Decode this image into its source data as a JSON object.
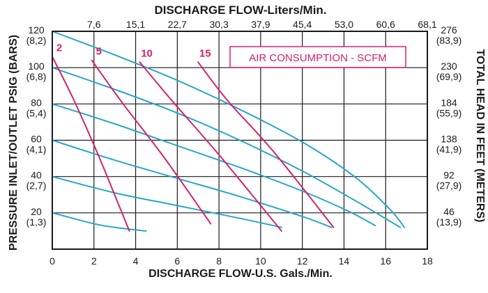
{
  "chart_data": {
    "type": "line",
    "title_top": "DISCHARGE FLOW-Liters/Min.",
    "xlabel": "DISCHARGE FLOW-U.S. Gals./Min.",
    "ylabel": "PRESSURE INLET/OUTLET PSIG (BARS)",
    "y2label": "TOTAL HEAD IN FEET (METERS)",
    "legend": "AIR CONSUMPTION - SCFM",
    "xlim": [
      0,
      18
    ],
    "ylim": [
      0,
      120
    ],
    "grid": true,
    "colors": {
      "pressure": "#29a6c9",
      "air": "#d6216e",
      "text": "#1a1a1a",
      "grid": "#1a1a1a"
    },
    "x_ticks": [
      {
        "value": 0,
        "label": "0"
      },
      {
        "value": 2,
        "label": "2"
      },
      {
        "value": 4,
        "label": "4"
      },
      {
        "value": 6,
        "label": "6"
      },
      {
        "value": 8,
        "label": "8"
      },
      {
        "value": 10,
        "label": "10"
      },
      {
        "value": 12,
        "label": "12"
      },
      {
        "value": 14,
        "label": "14"
      },
      {
        "value": 16,
        "label": "16"
      },
      {
        "value": 18,
        "label": "18"
      }
    ],
    "x_top_ticks": [
      {
        "value": 2,
        "label": "7,6"
      },
      {
        "value": 4,
        "label": "15,1"
      },
      {
        "value": 6,
        "label": "22,7"
      },
      {
        "value": 8,
        "label": "30,3"
      },
      {
        "value": 10,
        "label": "37,9"
      },
      {
        "value": 12,
        "label": "45,4"
      },
      {
        "value": 14,
        "label": "53,0"
      },
      {
        "value": 16,
        "label": "60,6"
      },
      {
        "value": 18,
        "label": "68,1"
      }
    ],
    "y_left_ticks": [
      {
        "value": 120,
        "label": "120",
        "sub": "(8,2)"
      },
      {
        "value": 100,
        "label": "100",
        "sub": "(6,8)"
      },
      {
        "value": 80,
        "label": "80",
        "sub": "(5,4)"
      },
      {
        "value": 60,
        "label": "60",
        "sub": "(4,1)"
      },
      {
        "value": 40,
        "label": "40",
        "sub": "(2,7)"
      },
      {
        "value": 20,
        "label": "20",
        "sub": "(1,3)"
      }
    ],
    "y_right_ticks": [
      {
        "value": 120,
        "label": "276",
        "sub": "(83,9)"
      },
      {
        "value": 100,
        "label": "230",
        "sub": "(69,9)"
      },
      {
        "value": 80,
        "label": "184",
        "sub": "(55,9)"
      },
      {
        "value": 60,
        "label": "138",
        "sub": "(41,9)"
      },
      {
        "value": 40,
        "label": "92",
        "sub": "(27,9)"
      },
      {
        "value": 20,
        "label": "46",
        "sub": "(13,9)"
      }
    ],
    "pressure_series": [
      {
        "x": [
          0,
          3,
          6,
          9,
          12,
          14.5,
          16.2,
          16.9
        ],
        "y": [
          120,
          107,
          93,
          77,
          59,
          40,
          22,
          12
        ]
      },
      {
        "x": [
          0,
          3,
          6,
          9,
          12,
          14.5,
          16.7
        ],
        "y": [
          100,
          88,
          75,
          60,
          43,
          27,
          12
        ]
      },
      {
        "x": [
          0,
          3,
          6,
          9,
          12,
          14.2,
          15.5
        ],
        "y": [
          80,
          69,
          57,
          45,
          32,
          21,
          13
        ]
      },
      {
        "x": [
          0,
          3,
          6,
          9,
          12,
          13.4
        ],
        "y": [
          60,
          49,
          39,
          29,
          18,
          12
        ]
      },
      {
        "x": [
          0,
          3,
          6,
          9,
          11
        ],
        "y": [
          40,
          31,
          24,
          17,
          12
        ]
      },
      {
        "x": [
          0,
          2,
          3,
          4.5
        ],
        "y": [
          20,
          14,
          12,
          10
        ]
      }
    ],
    "air_series": [
      {
        "label": "2",
        "x": [
          0.0,
          1.0,
          2.2,
          3.7
        ],
        "y": [
          106,
          83,
          52,
          10
        ]
      },
      {
        "label": "5",
        "x": [
          1.9,
          3.4,
          5.4,
          7.6
        ],
        "y": [
          104,
          80,
          50,
          14
        ]
      },
      {
        "label": "10",
        "x": [
          4.2,
          5.8,
          8.0,
          11.0
        ],
        "y": [
          103,
          81,
          52,
          10
        ]
      },
      {
        "label": "15",
        "x": [
          7.0,
          8.4,
          10.6,
          13.5
        ],
        "y": [
          103,
          82,
          54,
          12
        ]
      }
    ]
  }
}
